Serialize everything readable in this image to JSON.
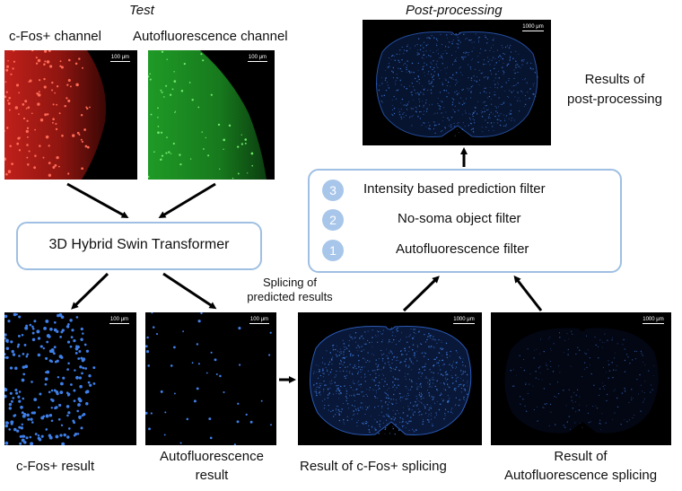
{
  "headings": {
    "test": "Test",
    "post": "Post-processing"
  },
  "channels": {
    "cfos": "c-Fos+ channel",
    "auto": "Autofluorescence channel"
  },
  "model_box": "3D Hybrid Swin Transformer",
  "splicing": {
    "line1": "Splicing of",
    "line2": "predicted results"
  },
  "results": {
    "cfos": "c-Fos+ result",
    "auto_line1": "Autofluorescence",
    "auto_line2": "result",
    "cfos_splice": "Result of c-Fos+ splicing",
    "auto_splice_line1": "Result of",
    "auto_splice_line2": "Autofluorescence splicing"
  },
  "post_results": {
    "line1": "Results of",
    "line2": "post-processing"
  },
  "filters": [
    {
      "num": "3",
      "label": "Intensity based prediction filter"
    },
    {
      "num": "2",
      "label": "No-soma object filter"
    },
    {
      "num": "1",
      "label": "Autofluorescence filter"
    }
  ],
  "scalebars": {
    "small": "100 μm",
    "large": "1000 μm"
  },
  "colors": {
    "cfos_channel": "#c0201a",
    "auto_channel": "#1f9a26",
    "detections": "#3f7fe8",
    "box_border": "#9fbfe3",
    "step_circle": "#a8c6ea"
  }
}
